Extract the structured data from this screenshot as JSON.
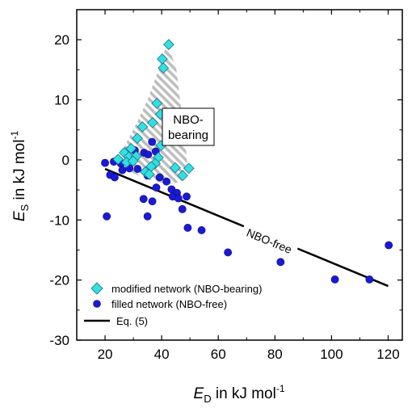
{
  "chart_data": {
    "type": "scatter",
    "xlabel": {
      "main": "E",
      "sub": "D",
      "rest": " in kJ mol",
      "sup": "-1"
    },
    "ylabel": {
      "main": "E",
      "sub": "S",
      "rest": " in kJ mol",
      "sup": "-1"
    },
    "xlim": [
      10,
      125
    ],
    "ylim": [
      -30,
      25
    ],
    "xticks": [
      20,
      40,
      60,
      80,
      100,
      120
    ],
    "yticks": [
      -30,
      -20,
      -10,
      0,
      10,
      20
    ],
    "grid": false,
    "legend_position": "bottom-left",
    "series": [
      {
        "name": "modified network (NBO-bearing)",
        "marker": "diamond",
        "color": "#33e0e0",
        "points": [
          [
            42.5,
            19.2
          ],
          [
            40.2,
            16.8
          ],
          [
            40.6,
            15.3
          ],
          [
            38.3,
            9.4
          ],
          [
            39.6,
            7.6
          ],
          [
            36.8,
            6.2
          ],
          [
            33.2,
            5.5
          ],
          [
            31.4,
            3.6
          ],
          [
            39.8,
            2.4
          ],
          [
            29.2,
            1.9
          ],
          [
            26.8,
            1.2
          ],
          [
            28.4,
            0.5
          ],
          [
            31.0,
            0.6
          ],
          [
            38.8,
            0.4
          ],
          [
            24.6,
            0.1
          ],
          [
            37.7,
            -0.6
          ],
          [
            27.6,
            -0.4
          ],
          [
            29.9,
            -0.2
          ],
          [
            36.3,
            -1.1
          ],
          [
            44.8,
            -1.3
          ],
          [
            49.6,
            -1.4
          ],
          [
            34.2,
            -2.0
          ],
          [
            35.6,
            -2.4
          ],
          [
            47.4,
            -2.6
          ]
        ]
      },
      {
        "name": "filled network (NBO-free)",
        "marker": "circle",
        "color": "#1a1ad6",
        "points": [
          [
            20.0,
            -0.5
          ],
          [
            23.1,
            -0.3
          ],
          [
            25.6,
            -0.6
          ],
          [
            30.5,
            1.6
          ],
          [
            33.8,
            1.2
          ],
          [
            36.6,
            3.0
          ],
          [
            35.2,
            0.9
          ],
          [
            37.9,
            1.4
          ],
          [
            21.8,
            -2.5
          ],
          [
            23.4,
            -2.9
          ],
          [
            26.1,
            -1.7
          ],
          [
            28.6,
            -1.4
          ],
          [
            31.5,
            -1.5
          ],
          [
            35.0,
            -2.6
          ],
          [
            39.3,
            -2.9
          ],
          [
            41.7,
            -3.6
          ],
          [
            38.1,
            -4.6
          ],
          [
            43.5,
            -4.9
          ],
          [
            45.4,
            -5.5
          ],
          [
            43.9,
            -6.1
          ],
          [
            45.9,
            -6.4
          ],
          [
            48.8,
            -6.1
          ],
          [
            33.6,
            -6.5
          ],
          [
            36.7,
            -6.9
          ],
          [
            47.3,
            -8.2
          ],
          [
            20.6,
            -9.4
          ],
          [
            35.0,
            -9.4
          ],
          [
            49.2,
            -11.3
          ],
          [
            54.1,
            -11.7
          ],
          [
            63.4,
            -15.4
          ],
          [
            82.0,
            -17.0
          ],
          [
            101.2,
            -19.9
          ],
          [
            113.4,
            -19.9
          ],
          [
            120.2,
            -14.2
          ]
        ]
      },
      {
        "name": "Eq. (5)",
        "type": "line",
        "color": "#000000",
        "points": [
          [
            20,
            -1.5
          ],
          [
            120,
            -21.0
          ]
        ]
      }
    ],
    "region": {
      "label_line1": "NBO-",
      "label_line2": "bearing",
      "outline": [
        [
          24.5,
          0
        ],
        [
          27,
          2.4
        ],
        [
          31,
          6
        ],
        [
          35,
          10
        ],
        [
          38.5,
          14.5
        ],
        [
          42,
          19.5
        ],
        [
          45.2,
          15
        ],
        [
          47,
          8
        ],
        [
          48.5,
          2
        ],
        [
          49.5,
          -2.5
        ],
        [
          47,
          -3.5
        ],
        [
          44,
          -4
        ],
        [
          40,
          -3.8
        ],
        [
          36,
          -3.3
        ],
        [
          32,
          -2.6
        ],
        [
          28,
          -1.8
        ],
        [
          25,
          -0.8
        ]
      ]
    },
    "annotations": [
      {
        "text": "NBO-free",
        "x": 78,
        "y": -13.5,
        "angle_data_aligned_to_line": true
      }
    ]
  }
}
